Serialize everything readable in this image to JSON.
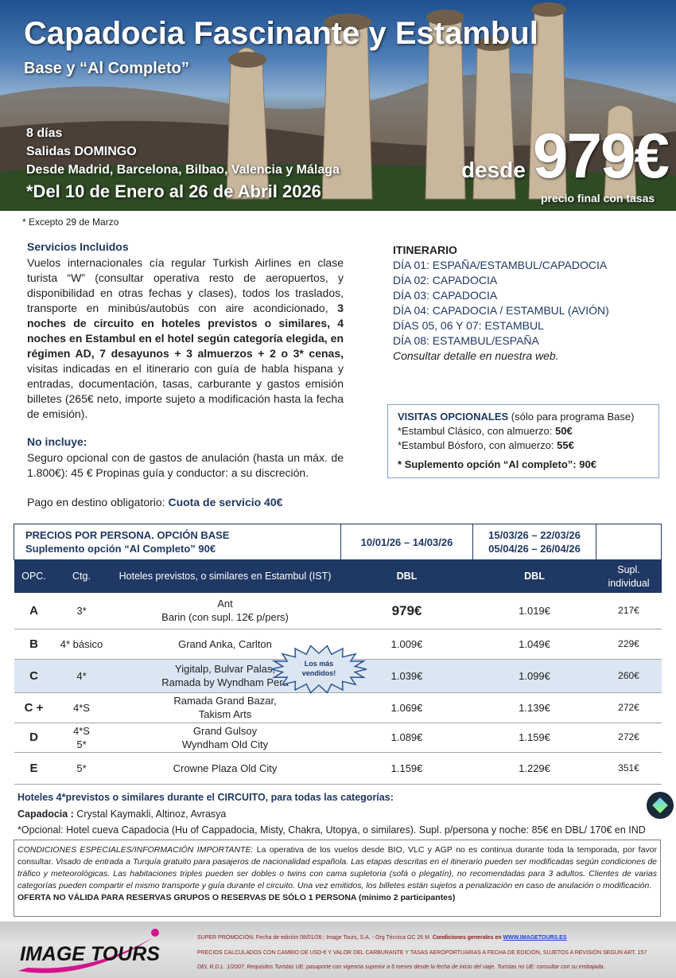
{
  "header": {
    "title": "Capadocia Fascinante y Estambul",
    "subtitle": "Base y “Al Completo”",
    "duration": "8 días",
    "departures": "Salidas DOMINGO",
    "origins": "Desde Madrid, Barcelona, Bilbao, Valencia y Málaga",
    "dates": "*Del 10 de Enero al 26 de Abril 2026",
    "price_prefix": "desde",
    "price": "979€",
    "price_note": "precio final con tasas"
  },
  "date_note": "* Excepto 29 de Marzo",
  "services": {
    "heading": "Servicios Incluidos",
    "text": [
      "Vuelos internacionales cía regular Turkish Airlines en  clase turista “W” (consultar operativa resto de aeropuertos, y disponibilidad en otras fechas y clases), todos los traslados, transporte en minibús/autobús con aire acondicionado,",
      "3 noches de circuito en hoteles previstos o similares, 4 noches en Estambul en el hotel según categoría elegida, en régimen AD, 7 desayunos +  3  almuerzos + 2 o 3* cenas,",
      "visitas indicadas en el itinerario con guía de habla hispana y entradas, documentación, tasas, carburante y gastos emisión billetes (265€ neto, importe sujeto a modificación hasta la fecha de emisión)."
    ]
  },
  "not_included": {
    "heading": "No incluye:",
    "text": "Seguro opcional con de gastos de anulación (hasta un máx. de 1.800€): 45 €  Propinas guía y conductor: a su discreción."
  },
  "payment": {
    "text": "Pago en destino obligatorio:",
    "highlight": "Cuota de servicio 40€"
  },
  "itinerary": {
    "heading": "ITINERARIO",
    "days": [
      "DÍA 01: ESPAÑA/ESTAMBUL/CAPADOCIA",
      "DÍA 02: CAPADOCIA",
      "DÍA 03: CAPADOCIA",
      "DÍA 04: CAPADOCIA / ESTAMBUL (AVIÓN)",
      "DÍAS 05, 06 Y 07: ESTAMBUL",
      "DÍA 08: ESTAMBUL/ESPAÑA"
    ],
    "note": "Consultar detalle en nuestra web."
  },
  "optional_visits": {
    "heading": "VISITAS OPCIONALES",
    "heading_note": "(sólo para programa Base)",
    "items": [
      {
        "text": "*Estambul Clásico, con almuerzo:",
        "price": "50€"
      },
      {
        "text": "*Estambul Bósforo, con almuerzo:",
        "price": "55€"
      }
    ],
    "supplement": "* Suplemento opción “Al completo”: 90€"
  },
  "table": {
    "title": "PRECIOS POR PERSONA. OPCIÓN BASE",
    "subtitle": "Suplemento opción “Al Completo” 90€",
    "period_1": "10/01/26 – 14/03/26",
    "period_2": [
      "15/03/26 – 22/03/26",
      "05/04/26 – 26/04/26"
    ],
    "columns": [
      "OPC.",
      "Ctg.",
      "Hoteles previstos, o similares en Estambul (IST)",
      "DBL",
      "DBL",
      "Supl. individual"
    ],
    "rows": [
      {
        "option": "A",
        "category": [
          "3*"
        ],
        "hotels": [
          "Ant",
          "Barin (con supl. 12€ p/pers)"
        ],
        "price_1": "979€",
        "price_2": "1.019€",
        "single": "217€"
      },
      {
        "option": "B",
        "category": [
          "4* básico"
        ],
        "hotels": [
          "Grand Anka, Carlton"
        ],
        "price_1": "1.009€",
        "price_2": "1.049€",
        "single": "229€"
      },
      {
        "option": "C",
        "category": [
          "4*"
        ],
        "hotels": [
          "Yigitalp, Bulvar Palas,",
          "Ramada by Wyndham Pera"
        ],
        "price_1": "1.039€",
        "price_2": "1.099€",
        "single": "260€"
      },
      {
        "option": "C +",
        "category": [
          "4*S"
        ],
        "hotels": [
          "Ramada Grand Bazar,",
          "Takism Arts"
        ],
        "price_1": "1.069€",
        "price_2": "1.139€",
        "single": "272€"
      },
      {
        "option": "D",
        "category": [
          "4*S",
          "5*"
        ],
        "hotels": [
          "Grand Gulsoy",
          "Wyndham Old City"
        ],
        "price_1": "1.089€",
        "price_2": "1.159€",
        "single": "272€"
      },
      {
        "option": "E",
        "category": [
          "5*"
        ],
        "hotels": [
          "Crowne Plaza Old City"
        ],
        "price_1": "1.159€",
        "price_2": "1.229€",
        "single": "351€"
      }
    ],
    "badge": [
      "Los más",
      "vendidos!"
    ]
  },
  "hotels": {
    "heading": "Hoteles 4*previstos o similares durante el CIRCUITO, para todas las categorías:",
    "cappadocia_label": "Capadocia :",
    "cappadocia_hotels": "Crystal Kaymakli, Altinoz, Avrasya",
    "optional": "*Opcional: Hotel cueva Capadocia (Hu of Cappadocia, Misty, Chakra, Utopya, o similares). Supl. p/persona y noche:  85€ en DBL/ 170€ en IND"
  },
  "conditions": {
    "label": "CONDICIONES ESPECIALES/INFORMACIÓN IMPORTANTE:",
    "text": "La operativa de los vuelos desde BIO, VLC y AGP no es continua durante toda la temporada, por favor consultar.",
    "details": "Visado de entrada a Turquía gratuito para pasajeros de nacionalidad española. Las etapas descritas en el itinerario pueden ser modificadas según condiciones de tráfico y meteorológicas. Las habitaciones triples pueden ser dobles o twins con cama supletoria (sofá o plegatín), no recomendadas para 3 adultos. Clientes de varias categorías pueden compartir el mismo transporte y guía durante el circuito. Una vez emitidos, los billetes están sujetos a penalización en caso de anulación o modificación.",
    "warning": "OFERTA NO VÁLIDA PARA RESERVAS GRUPOS O RESERVAS DE SÓLO 1 PERSONA (mínimo 2 participantes)"
  },
  "footer": {
    "logo": "IMAGE TOURS",
    "edition": "SUPER PROMOCIÓN. Fecha de edición 08/01/26::  Image Tours, S.A.  -  Org Técnica GC 26 M.",
    "conditions_label": "Condiciones generales en",
    "website": "WWW.IMAGETOURS.ES",
    "prices_note": "PRECIOS CALCULADOS CON CAMBIO DE USD-€ Y VALOR DEL CARBURANTE Y TASAS AEROPORTUARIAS A FECHA DE EDICIÓN, SUJETOS A REVISIÓN SEGUN ART. 157",
    "legal": "DEL R.D.L. 1/2007. Requisitos Turistas UE: pasaporte con vigencia superior a 6 meses desde la fecha de inicio del viaje. Turistas no UE: consultar con su embajada."
  }
}
